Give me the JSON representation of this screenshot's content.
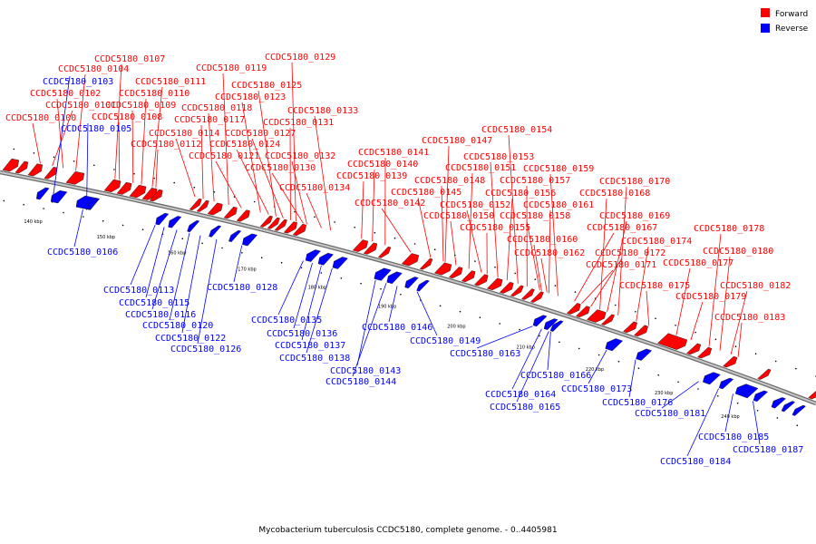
{
  "legend": {
    "forward": {
      "label": "Forward",
      "color": "#ff0000"
    },
    "reverse": {
      "label": "Reverse",
      "color": "#0000ff"
    }
  },
  "caption": "Mycobacterium tuberculosis CCDC5180, complete genome. - 0..4405981",
  "ticks": [
    "140 kbp",
    "150 kbp",
    "160 kbp",
    "170 kbp",
    "180 kbp",
    "190 kbp",
    "200 kbp",
    "210 kbp",
    "220 kbp",
    "230 kbp",
    "240 kbp"
  ],
  "genes": {
    "forward": [
      "CCDC5180_0100",
      "CCDC5180_0101",
      "CCDC5180_0102",
      "CCDC5180_0104",
      "CCDC5180_0107",
      "CCDC5180_0108",
      "CCDC5180_0109",
      "CCDC5180_0110",
      "CCDC5180_0111",
      "CCDC5180_0112",
      "CCDC5180_0114",
      "CCDC5180_0117",
      "CCDC5180_0118",
      "CCDC5180_0119",
      "CCDC5180_0121",
      "CCDC5180_0123",
      "CCDC5180_0124",
      "CCDC5180_0125",
      "CCDC5180_0127",
      "CCDC5180_0129",
      "CCDC5180_0130",
      "CCDC5180_0131",
      "CCDC5180_0132",
      "CCDC5180_0133",
      "CCDC5180_0134",
      "CCDC5180_0139",
      "CCDC5180_0140",
      "CCDC5180_0141",
      "CCDC5180_0142",
      "CCDC5180_0145",
      "CCDC5180_0147",
      "CCDC5180_0148",
      "CCDC5180_0150",
      "CCDC5180_0151",
      "CCDC5180_0152",
      "CCDC5180_0153",
      "CCDC5180_0154",
      "CCDC5180_0155",
      "CCDC5180_0156",
      "CCDC5180_0157",
      "CCDC5180_0158",
      "CCDC5180_0159",
      "CCDC5180_0160",
      "CCDC5180_0161",
      "CCDC5180_0162",
      "CCDC5180_0167",
      "CCDC5180_0168",
      "CCDC5180_0169",
      "CCDC5180_0170",
      "CCDC5180_0171",
      "CCDC5180_0172",
      "CCDC5180_0174",
      "CCDC5180_0175",
      "CCDC5180_0177",
      "CCDC5180_0178",
      "CCDC5180_0179",
      "CCDC5180_0180",
      "CCDC5180_0182",
      "CCDC5180_0183"
    ],
    "reverse": [
      "CCDC5180_0103",
      "CCDC5180_0105",
      "CCDC5180_0106",
      "CCDC5180_0113",
      "CCDC5180_0115",
      "CCDC5180_0116",
      "CCDC5180_0120",
      "CCDC5180_0122",
      "CCDC5180_0126",
      "CCDC5180_0128",
      "CCDC5180_0135",
      "CCDC5180_0136",
      "CCDC5180_0137",
      "CCDC5180_0138",
      "CCDC5180_0143",
      "CCDC5180_0144",
      "CCDC5180_0146",
      "CCDC5180_0149",
      "CCDC5180_0163",
      "CCDC5180_0164",
      "CCDC5180_0165",
      "CCDC5180_0166",
      "CCDC5180_0173",
      "CCDC5180_0176",
      "CCDC5180_0181",
      "CCDC5180_0184",
      "CCDC5180_0185",
      "CCDC5180_0187"
    ]
  }
}
